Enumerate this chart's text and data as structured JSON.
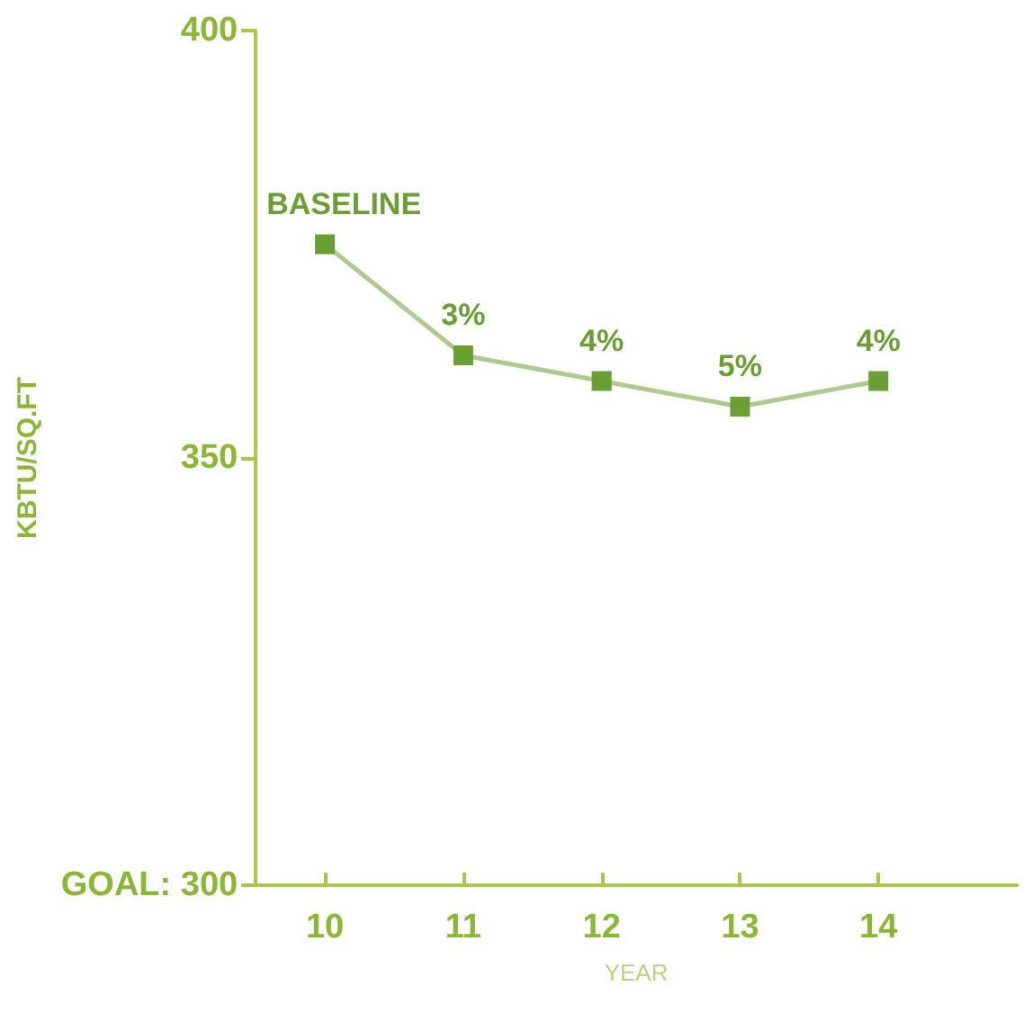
{
  "chart_data": {
    "type": "line",
    "xlabel": "YEAR",
    "ylabel": "KBTU/SQ.FT",
    "x": [
      10,
      11,
      12,
      13,
      14
    ],
    "series": [
      {
        "color": "#6aa033",
        "values": [
          375,
          362,
          359,
          356,
          359
        ]
      }
    ],
    "annotations": [
      {
        "text": "BASELINE",
        "x": 10,
        "y": 375
      },
      {
        "text": "3%",
        "x": 11,
        "y": 362
      },
      {
        "text": "4%",
        "x": 12,
        "y": 359
      },
      {
        "text": "5%",
        "x": 13,
        "y": 356
      },
      {
        "text": "4%",
        "x": 14,
        "y": 359
      }
    ],
    "xlim": [
      9.5,
      15
    ],
    "xticks": [
      10,
      11,
      12,
      13,
      14
    ],
    "ylim": [
      300,
      400
    ],
    "yticks": [
      {
        "value": 300,
        "label": "GOAL: 300"
      },
      350,
      400
    ],
    "grid": false,
    "marker": "square",
    "line_style": "solid"
  }
}
